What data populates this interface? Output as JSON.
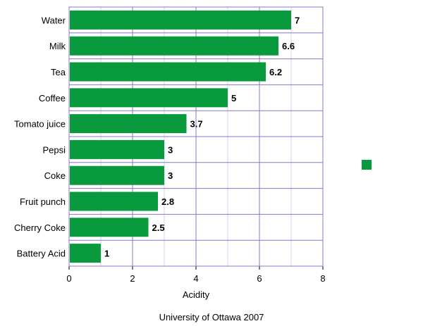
{
  "chart_data": {
    "type": "bar",
    "orientation": "horizontal",
    "categories": [
      "Water",
      "Milk",
      "Tea",
      "Coffee",
      "Tomato juice",
      "Pepsi",
      "Coke",
      "Fruit punch",
      "Cherry Coke",
      "Battery Acid"
    ],
    "values": [
      7,
      6.6,
      6.2,
      5,
      3.7,
      3,
      3,
      2.8,
      2.5,
      1
    ],
    "value_labels": [
      "7",
      "6.6",
      "6.2",
      "5",
      "3.7",
      "3",
      "3",
      "2.8",
      "2.5",
      "1"
    ],
    "xlabel": "Acidity",
    "ylabel": "",
    "xlim": [
      0,
      8
    ],
    "xticks": [
      0,
      2,
      4,
      6,
      8
    ],
    "grid": true,
    "legend_position": "right",
    "colors": {
      "bar": "#0a9a3e",
      "grid": "#8878c8",
      "legend_swatch": "#0a9a3e"
    }
  },
  "footer": "University of Ottawa 2007"
}
